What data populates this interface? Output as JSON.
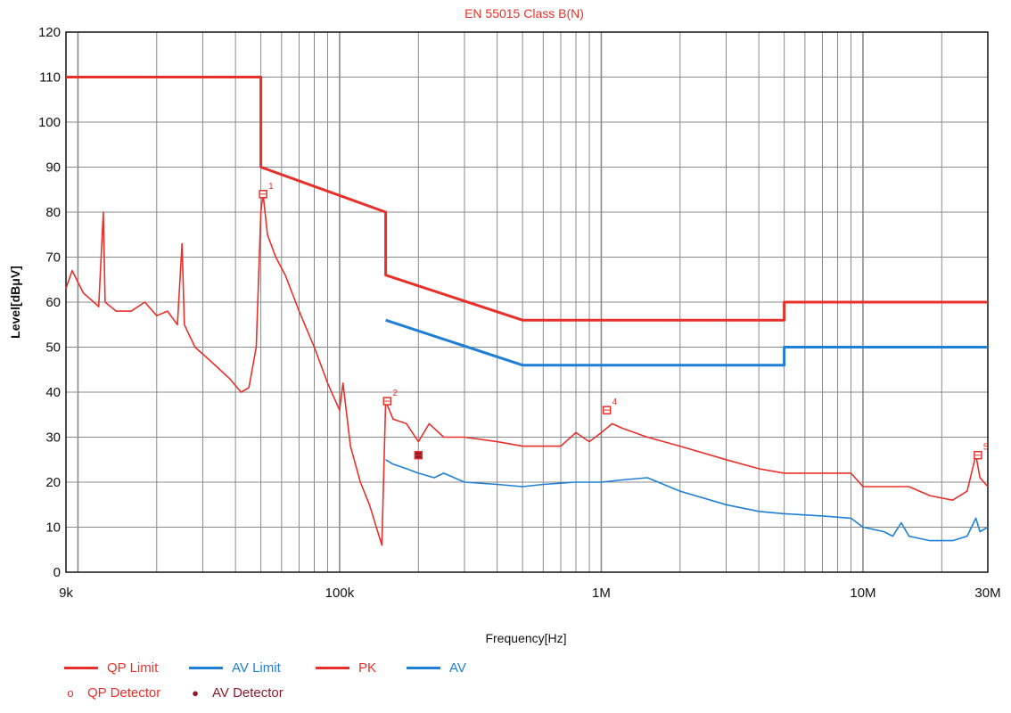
{
  "chart_data": {
    "type": "line",
    "title": "EN 55015 Class B(N)",
    "xlabel": "Frequency[Hz]",
    "ylabel": "Level[dBμV]",
    "x_scale": "log",
    "xlim": [
      9000,
      30000000
    ],
    "ylim": [
      0,
      120
    ],
    "x_ticks": [
      {
        "value": 9000,
        "label": "9k"
      },
      {
        "value": 100000,
        "label": "100k"
      },
      {
        "value": 1000000,
        "label": "1M"
      },
      {
        "value": 10000000,
        "label": "10M"
      },
      {
        "value": 30000000,
        "label": "30M"
      }
    ],
    "y_ticks": [
      0,
      10,
      20,
      30,
      40,
      50,
      60,
      70,
      80,
      90,
      100,
      110,
      120
    ],
    "grid": true,
    "legend_position": "bottom-left",
    "series": [
      {
        "name": "QP Limit",
        "color": "#e8302a",
        "points": [
          [
            9000,
            110
          ],
          [
            50000,
            110
          ],
          [
            50000,
            90
          ],
          [
            150000,
            80
          ],
          [
            150000,
            66
          ],
          [
            500000,
            56
          ],
          [
            5000000,
            56
          ],
          [
            5000000,
            60
          ],
          [
            30000000,
            60
          ]
        ]
      },
      {
        "name": "AV Limit",
        "color": "#1f7fd6",
        "points": [
          [
            150000,
            56
          ],
          [
            500000,
            46
          ],
          [
            5000000,
            46
          ],
          [
            5000000,
            50
          ],
          [
            30000000,
            50
          ]
        ]
      },
      {
        "name": "PK",
        "color": "#e8302a",
        "points": [
          [
            9000,
            63
          ],
          [
            9500,
            67
          ],
          [
            10500,
            62
          ],
          [
            11500,
            60
          ],
          [
            12000,
            59
          ],
          [
            12500,
            80
          ],
          [
            12700,
            60
          ],
          [
            14000,
            58
          ],
          [
            16000,
            58
          ],
          [
            18000,
            60
          ],
          [
            20000,
            57
          ],
          [
            22000,
            58
          ],
          [
            24000,
            55
          ],
          [
            25000,
            73
          ],
          [
            25500,
            55
          ],
          [
            28000,
            50
          ],
          [
            32000,
            47
          ],
          [
            38000,
            43
          ],
          [
            42000,
            40
          ],
          [
            45000,
            41
          ],
          [
            48000,
            50
          ],
          [
            50000,
            80
          ],
          [
            51000,
            84
          ],
          [
            53000,
            75
          ],
          [
            57000,
            70
          ],
          [
            62000,
            66
          ],
          [
            70000,
            58
          ],
          [
            80000,
            50
          ],
          [
            90000,
            42
          ],
          [
            100000,
            36
          ],
          [
            103000,
            42
          ],
          [
            110000,
            28
          ],
          [
            120000,
            20
          ],
          [
            130000,
            15
          ],
          [
            145000,
            6
          ],
          [
            150000,
            38
          ],
          [
            160000,
            34
          ],
          [
            180000,
            33
          ],
          [
            200000,
            29
          ],
          [
            220000,
            33
          ],
          [
            250000,
            30
          ],
          [
            300000,
            30
          ],
          [
            400000,
            29
          ],
          [
            500000,
            28
          ],
          [
            600000,
            28
          ],
          [
            700000,
            28
          ],
          [
            800000,
            31
          ],
          [
            900000,
            29
          ],
          [
            1000000,
            31
          ],
          [
            1100000,
            33
          ],
          [
            1200000,
            32
          ],
          [
            1500000,
            30
          ],
          [
            2000000,
            28
          ],
          [
            3000000,
            25
          ],
          [
            4000000,
            23
          ],
          [
            5000000,
            22
          ],
          [
            7000000,
            22
          ],
          [
            9000000,
            22
          ],
          [
            10000000,
            19
          ],
          [
            12000000,
            19
          ],
          [
            15000000,
            19
          ],
          [
            18000000,
            17
          ],
          [
            22000000,
            16
          ],
          [
            25000000,
            18
          ],
          [
            27000000,
            26
          ],
          [
            28000000,
            21
          ],
          [
            30000000,
            19
          ]
        ]
      },
      {
        "name": "AV",
        "color": "#1f7fd6",
        "points": [
          [
            150000,
            25
          ],
          [
            160000,
            24
          ],
          [
            180000,
            23
          ],
          [
            200000,
            22
          ],
          [
            230000,
            21
          ],
          [
            250000,
            22
          ],
          [
            300000,
            20
          ],
          [
            400000,
            19.5
          ],
          [
            500000,
            19
          ],
          [
            600000,
            19.5
          ],
          [
            800000,
            20
          ],
          [
            1000000,
            20
          ],
          [
            1200000,
            20.5
          ],
          [
            1500000,
            21
          ],
          [
            2000000,
            18
          ],
          [
            3000000,
            15
          ],
          [
            4000000,
            13.5
          ],
          [
            5000000,
            13
          ],
          [
            7000000,
            12.5
          ],
          [
            9000000,
            12
          ],
          [
            10000000,
            10
          ],
          [
            12000000,
            9
          ],
          [
            13000000,
            8
          ],
          [
            14000000,
            11
          ],
          [
            15000000,
            8
          ],
          [
            18000000,
            7
          ],
          [
            22000000,
            7
          ],
          [
            25000000,
            8
          ],
          [
            27000000,
            12
          ],
          [
            28000000,
            9
          ],
          [
            30000000,
            10
          ]
        ]
      }
    ],
    "detector_markers": [
      {
        "type": "QP Detector",
        "label": "1",
        "x": 51000,
        "y": 84
      },
      {
        "type": "QP Detector",
        "label": "2",
        "x": 152000,
        "y": 38
      },
      {
        "type": "AV Detector",
        "label": "",
        "x": 200000,
        "y": 26
      },
      {
        "type": "QP Detector",
        "label": "4",
        "x": 1050000,
        "y": 36
      },
      {
        "type": "QP Detector",
        "label": "5",
        "x": 27500000,
        "y": 26
      }
    ],
    "legend": [
      {
        "name": "QP Limit",
        "kind": "line",
        "color": "#e8302a"
      },
      {
        "name": "AV Limit",
        "kind": "line",
        "color": "#1f7fd6"
      },
      {
        "name": "PK",
        "kind": "line",
        "color": "#e8302a"
      },
      {
        "name": "AV",
        "kind": "line",
        "color": "#1f7fd6"
      },
      {
        "name": "QP Detector",
        "kind": "marker",
        "symbol": "o",
        "color": "#e8302a"
      },
      {
        "name": "AV Detector",
        "kind": "marker",
        "symbol": "●",
        "color": "#8b1a2e"
      }
    ],
    "colors": {
      "red": "#e8302a",
      "blue": "#1f7fd6",
      "av_marker": "#8b1a2e",
      "grid": "#8a8a8a"
    }
  }
}
